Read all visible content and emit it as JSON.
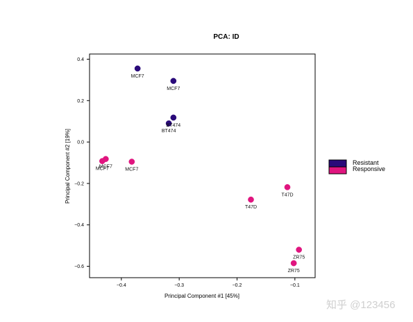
{
  "chart_data": {
    "type": "scatter",
    "title": "PCA: ID",
    "xlabel": "Principal Component #1 [45%]",
    "ylabel": "Principal Component #2 [19%]",
    "xlim": [
      -0.455,
      -0.065
    ],
    "ylim": [
      -0.655,
      0.425
    ],
    "xticks": [
      -0.4,
      -0.3,
      -0.2,
      -0.1
    ],
    "xtick_labels": [
      "−0.4",
      "−0.3",
      "−0.2",
      "−0.1"
    ],
    "yticks": [
      0.4,
      0.2,
      0.0,
      -0.2,
      -0.4,
      -0.6
    ],
    "ytick_labels": [
      "0.4",
      "0.2",
      "0.0",
      "−0.2",
      "−0.4",
      "−0.6"
    ],
    "grid": false,
    "legend_position": "right",
    "series": [
      {
        "name": "Resistant",
        "color": "#2a0a7a",
        "points": [
          {
            "x": -0.372,
            "y": 0.355,
            "label": "MCF7"
          },
          {
            "x": -0.31,
            "y": 0.295,
            "label": "MCF7"
          },
          {
            "x": -0.31,
            "y": 0.118,
            "label": "BT474"
          },
          {
            "x": -0.318,
            "y": 0.09,
            "label": "BT474"
          }
        ]
      },
      {
        "name": "Responsive",
        "color": "#e0157f",
        "points": [
          {
            "x": -0.427,
            "y": -0.082,
            "label": "MCF7"
          },
          {
            "x": -0.433,
            "y": -0.092,
            "label": "MCF7"
          },
          {
            "x": -0.382,
            "y": -0.095,
            "label": "MCF7"
          },
          {
            "x": -0.176,
            "y": -0.278,
            "label": "T47D"
          },
          {
            "x": -0.113,
            "y": -0.218,
            "label": "T47D"
          },
          {
            "x": -0.093,
            "y": -0.52,
            "label": "ZR75"
          },
          {
            "x": -0.102,
            "y": -0.585,
            "label": "ZR75"
          }
        ]
      }
    ]
  },
  "watermark": "知乎 @123456"
}
